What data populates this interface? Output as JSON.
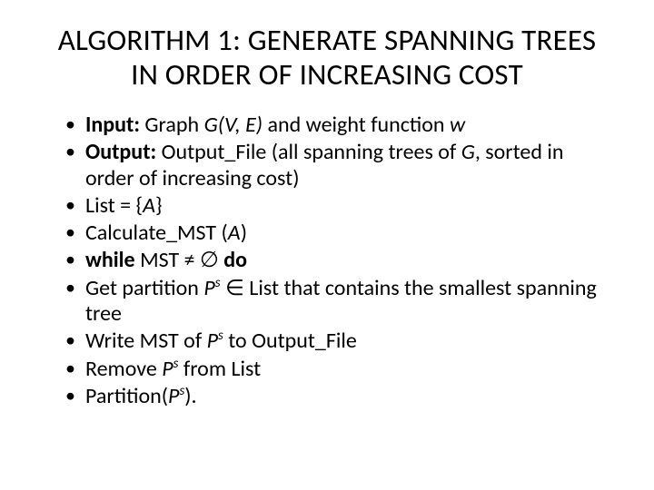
{
  "title": "ALGORITHM 1: GENERATE SPANNING TREES IN ORDER OF INCREASING COST",
  "items": [
    {
      "pre_bold": "Input:",
      "pre": " Graph ",
      "ital1": "G(V, E)",
      "mid": " and weight function ",
      "ital2": "w",
      "post": ""
    },
    {
      "pre_bold": "Output:",
      "pre": " Output_File (all spanning trees of ",
      "ital1": "G",
      "mid": ", sorted in order of increasing cost)",
      "ital2": "",
      "post": ""
    },
    {
      "pre_bold": "",
      "pre": "List = {",
      "ital1": "A",
      "mid": "}",
      "ital2": "",
      "post": ""
    },
    {
      "pre_bold": "",
      "pre": "Calculate_MST (",
      "ital1": "A",
      "mid": ")",
      "ital2": "",
      "post": ""
    },
    {
      "pre_bold": "while",
      "pre": "",
      "ital1": "",
      "mid": " MST ≠ ∅ ",
      "ital2": "",
      "post_bold": "do",
      "post": ""
    },
    {
      "pre_bold": "",
      "pre": "Get partition ",
      "ital1": "P",
      "sup1": "s",
      "mid": " ∈ List that contains the smallest spanning tree",
      "ital2": "",
      "post": ""
    },
    {
      "pre_bold": "",
      "pre": "Write MST of ",
      "ital1": "P",
      "sup1": "s",
      "mid": " to Output_File",
      "ital2": "",
      "post": ""
    },
    {
      "pre_bold": "",
      "pre": "Remove ",
      "ital1": "P",
      "sup1": "s",
      "mid": " from List",
      "ital2": "",
      "post": ""
    },
    {
      "pre_bold": "",
      "pre": "Partition(",
      "ital1": "P",
      "sup1": "s",
      "mid": ").",
      "ital2": "",
      "post": ""
    }
  ]
}
